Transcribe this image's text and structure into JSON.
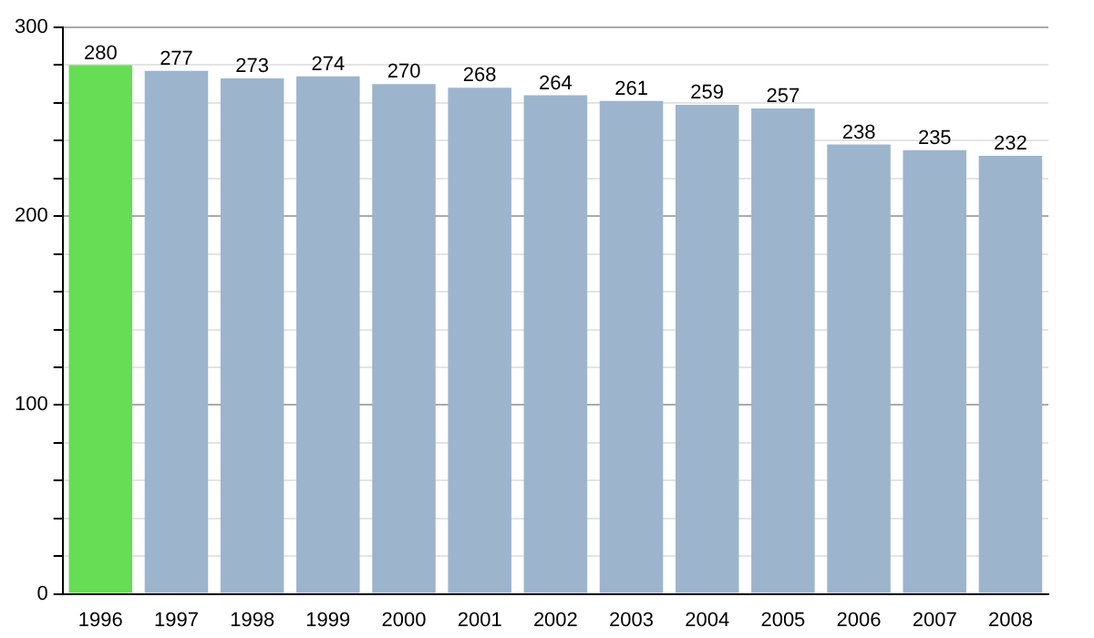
{
  "chart_data": {
    "type": "bar",
    "categories": [
      "1996",
      "1997",
      "1998",
      "1999",
      "2000",
      "2001",
      "2002",
      "2003",
      "2004",
      "2005",
      "2006",
      "2007",
      "2008"
    ],
    "values": [
      280,
      277,
      273,
      274,
      270,
      268,
      264,
      261,
      259,
      257,
      238,
      235,
      232
    ],
    "colors": [
      "#66dd55",
      "#9db4cd",
      "#9db4cd",
      "#9db4cd",
      "#9db4cd",
      "#9db4cd",
      "#9db4cd",
      "#9db4cd",
      "#9db4cd",
      "#9db4cd",
      "#9db4cd",
      "#9db4cd",
      "#9db4cd"
    ],
    "ylim": [
      0,
      300
    ],
    "yticks": [
      0,
      {
        "value": 20,
        "label": null
      },
      {
        "value": 40,
        "label": null
      },
      {
        "value": 60,
        "label": null
      },
      {
        "value": 80,
        "label": null
      },
      100,
      {
        "value": 120,
        "label": null
      },
      {
        "value": 140,
        "label": null
      },
      {
        "value": 160,
        "label": null
      },
      {
        "value": 180,
        "label": null
      },
      200,
      {
        "value": 220,
        "label": null
      },
      {
        "value": 240,
        "label": null
      },
      {
        "value": 260,
        "label": null
      },
      {
        "value": 280,
        "label": null
      },
      300
    ],
    "grid": "y",
    "data_labels": true,
    "legend": false
  }
}
